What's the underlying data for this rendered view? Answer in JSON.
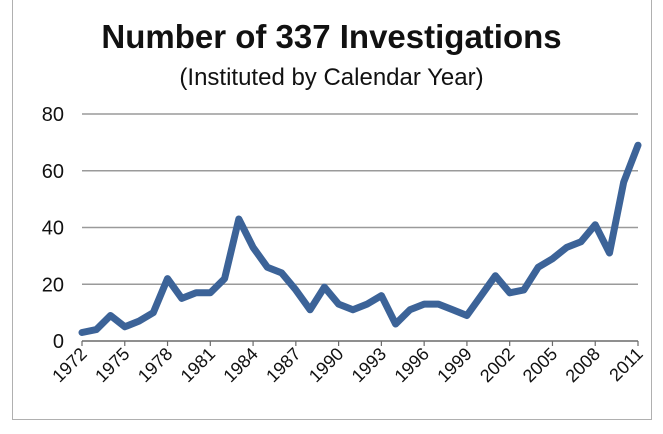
{
  "chart_data": {
    "type": "line",
    "title": "Number of 337 Investigations",
    "subtitle": "(Instituted by Calendar Year)",
    "xlabel": "",
    "ylabel": "",
    "ylim": [
      0,
      80
    ],
    "yticks": [
      "0",
      "20",
      "40",
      "60",
      "80"
    ],
    "xticks": [
      "1972",
      "1975",
      "1978",
      "1981",
      "1984",
      "1987",
      "1990",
      "1993",
      "1996",
      "1999",
      "2002",
      "2005",
      "2008",
      "2011"
    ],
    "x": [
      1972,
      1973,
      1974,
      1975,
      1976,
      1977,
      1978,
      1979,
      1980,
      1981,
      1982,
      1983,
      1984,
      1985,
      1986,
      1987,
      1988,
      1989,
      1990,
      1991,
      1992,
      1993,
      1994,
      1995,
      1996,
      1997,
      1998,
      1999,
      2000,
      2001,
      2002,
      2003,
      2004,
      2005,
      2006,
      2007,
      2008,
      2009,
      2010,
      2011
    ],
    "series": [
      {
        "values": [
          3,
          4,
          9,
          5,
          7,
          10,
          22,
          15,
          17,
          17,
          22,
          43,
          33,
          26,
          24,
          18,
          11,
          19,
          13,
          11,
          13,
          16,
          6,
          11,
          13,
          13,
          11,
          9,
          16,
          23,
          17,
          18,
          26,
          29,
          33,
          35,
          41,
          31,
          56,
          69
        ],
        "color": "#3c6398"
      }
    ],
    "grid": true,
    "legend": "none"
  }
}
